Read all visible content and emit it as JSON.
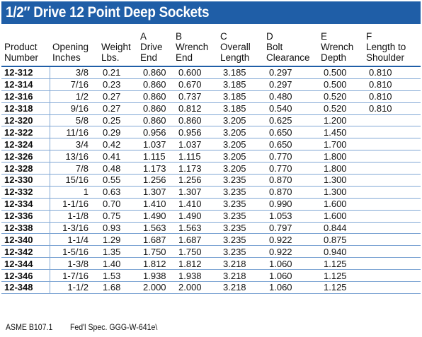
{
  "title": "1/2″ Drive 12 Point Deep Sockets",
  "columns": [
    [
      "Product",
      "Number"
    ],
    [
      "Opening",
      "Inches"
    ],
    [
      "Weight",
      "Lbs."
    ],
    [
      "A",
      "Drive",
      "End"
    ],
    [
      "B",
      "Wrench",
      "End"
    ],
    [
      "C",
      "Overall",
      "Length"
    ],
    [
      "D",
      "Bolt",
      "Clearance"
    ],
    [
      "E",
      "Wrench",
      "Depth"
    ],
    [
      "F",
      "Length to",
      "Shoulder"
    ]
  ],
  "rows": [
    [
      "12-312",
      "3/8",
      "0.21",
      "0.860",
      "0.600",
      "3.185",
      "0.297",
      "0.500",
      "0.810"
    ],
    [
      "12-314",
      "7/16",
      "0.23",
      "0.860",
      "0.670",
      "3.185",
      "0.297",
      "0.500",
      "0.810"
    ],
    [
      "12-316",
      "1/2",
      "0.27",
      "0.860",
      "0.737",
      "3.185",
      "0.480",
      "0.520",
      "0.810"
    ],
    [
      "12-318",
      "9/16",
      "0.27",
      "0.860",
      "0.812",
      "3.185",
      "0.540",
      "0.520",
      "0.810"
    ],
    [
      "12-320",
      "5/8",
      "0.25",
      "0.860",
      "0.860",
      "3.205",
      "0.625",
      "1.200",
      ""
    ],
    [
      "12-322",
      "11/16",
      "0.29",
      "0.956",
      "0.956",
      "3.205",
      "0.650",
      "1.450",
      ""
    ],
    [
      "12-324",
      "3/4",
      "0.42",
      "1.037",
      "1.037",
      "3.205",
      "0.650",
      "1.700",
      ""
    ],
    [
      "12-326",
      "13/16",
      "0.41",
      "1.115",
      "1.115",
      "3.205",
      "0.770",
      "1.800",
      ""
    ],
    [
      "12-328",
      "7/8",
      "0.48",
      "1.173",
      "1.173",
      "3.205",
      "0.770",
      "1.800",
      ""
    ],
    [
      "12-330",
      "15/16",
      "0.55",
      "1.256",
      "1.256",
      "3.235",
      "0.870",
      "1.300",
      ""
    ],
    [
      "12-332",
      "1",
      "0.63",
      "1.307",
      "1.307",
      "3.235",
      "0.870",
      "1.300",
      ""
    ],
    [
      "12-334",
      "1-1/16",
      "0.70",
      "1.410",
      "1.410",
      "3.235",
      "0.990",
      "1.600",
      ""
    ],
    [
      "12-336",
      "1-1/8",
      "0.75",
      "1.490",
      "1.490",
      "3.235",
      "1.053",
      "1.600",
      ""
    ],
    [
      "12-338",
      "1-3/16",
      "0.93",
      "1.563",
      "1.563",
      "3.235",
      "0.797",
      "0.844",
      ""
    ],
    [
      "12-340",
      "1-1/4",
      "1.29",
      "1.687",
      "1.687",
      "3.235",
      "0.922",
      "0.875",
      ""
    ],
    [
      "12-342",
      "1-5/16",
      "1.35",
      "1.750",
      "1.750",
      "3.235",
      "0.922",
      "0.940",
      ""
    ],
    [
      "12-344",
      "1-3/8",
      "1.40",
      "1.812",
      "1.812",
      "3.218",
      "1.060",
      "1.125",
      ""
    ],
    [
      "12-346",
      "1-7/16",
      "1.53",
      "1.938",
      "1.938",
      "3.218",
      "1.060",
      "1.125",
      ""
    ],
    [
      "12-348",
      "1-1/2",
      "1.68",
      "2.000",
      "2.000",
      "3.218",
      "1.060",
      "1.125",
      ""
    ]
  ],
  "footer": {
    "standard": "ASME B107.1",
    "spec": "Fed'l Spec. GGG-W-641e\\"
  },
  "colors": {
    "banner": "#1f5ea7",
    "rule": "#7fa6d4"
  }
}
